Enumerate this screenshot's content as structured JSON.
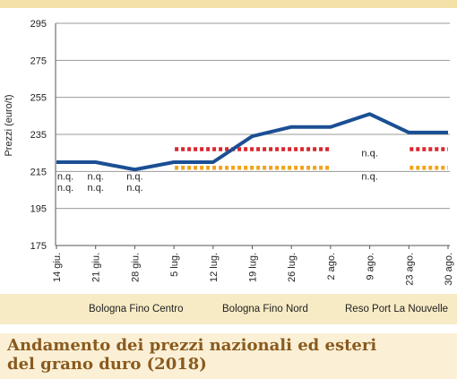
{
  "title": "Andamento dei prezzi nazionali ed esteri del grano duro (2018)",
  "chart_data": {
    "type": "line",
    "ylabel": "Prezzi (euro/t)",
    "ylim": [
      175,
      295
    ],
    "yticks": [
      175,
      195,
      215,
      235,
      255,
      275,
      295
    ],
    "categories": [
      "14 giu.",
      "21 giu.",
      "28 giu.",
      "5 lug.",
      "12 lug.",
      "19 lug.",
      "26 lug.",
      "2 ago.",
      "9 ago.",
      "23 ago.",
      "30 ago."
    ],
    "grid": "horizontal",
    "legend_position": "bottom",
    "series": [
      {
        "name": "Bologna Fino Centro",
        "style": "dotted",
        "color": "#d9262e",
        "values": [
          null,
          null,
          null,
          227,
          227,
          227,
          227,
          227,
          null,
          227,
          227
        ]
      },
      {
        "name": "Bologna Fino Nord",
        "style": "dotted",
        "color": "#f2a31b",
        "values": [
          null,
          null,
          null,
          217,
          217,
          217,
          217,
          217,
          null,
          217,
          217
        ]
      },
      {
        "name": "Reso Port La Nouvelle",
        "style": "solid",
        "color": "#1b4f94",
        "values": [
          220,
          220,
          216,
          220,
          220,
          234,
          239,
          239,
          246,
          236,
          236
        ]
      }
    ],
    "annotations": [
      {
        "text": "n.q.",
        "category": "14 giu.",
        "y": 212.5
      },
      {
        "text": "n.q.",
        "category": "14 giu.",
        "y": 206.5
      },
      {
        "text": "n.q.",
        "category": "21 giu.",
        "y": 212.5
      },
      {
        "text": "n.q.",
        "category": "21 giu.",
        "y": 206.5
      },
      {
        "text": "n.q.",
        "category": "28 giu.",
        "y": 212.5
      },
      {
        "text": "n.q.",
        "category": "28 giu.",
        "y": 206.5
      },
      {
        "text": "n.q.",
        "category": "9 ago.",
        "y": 225
      },
      {
        "text": "n.q.",
        "category": "9 ago.",
        "y": 212.5
      }
    ]
  }
}
